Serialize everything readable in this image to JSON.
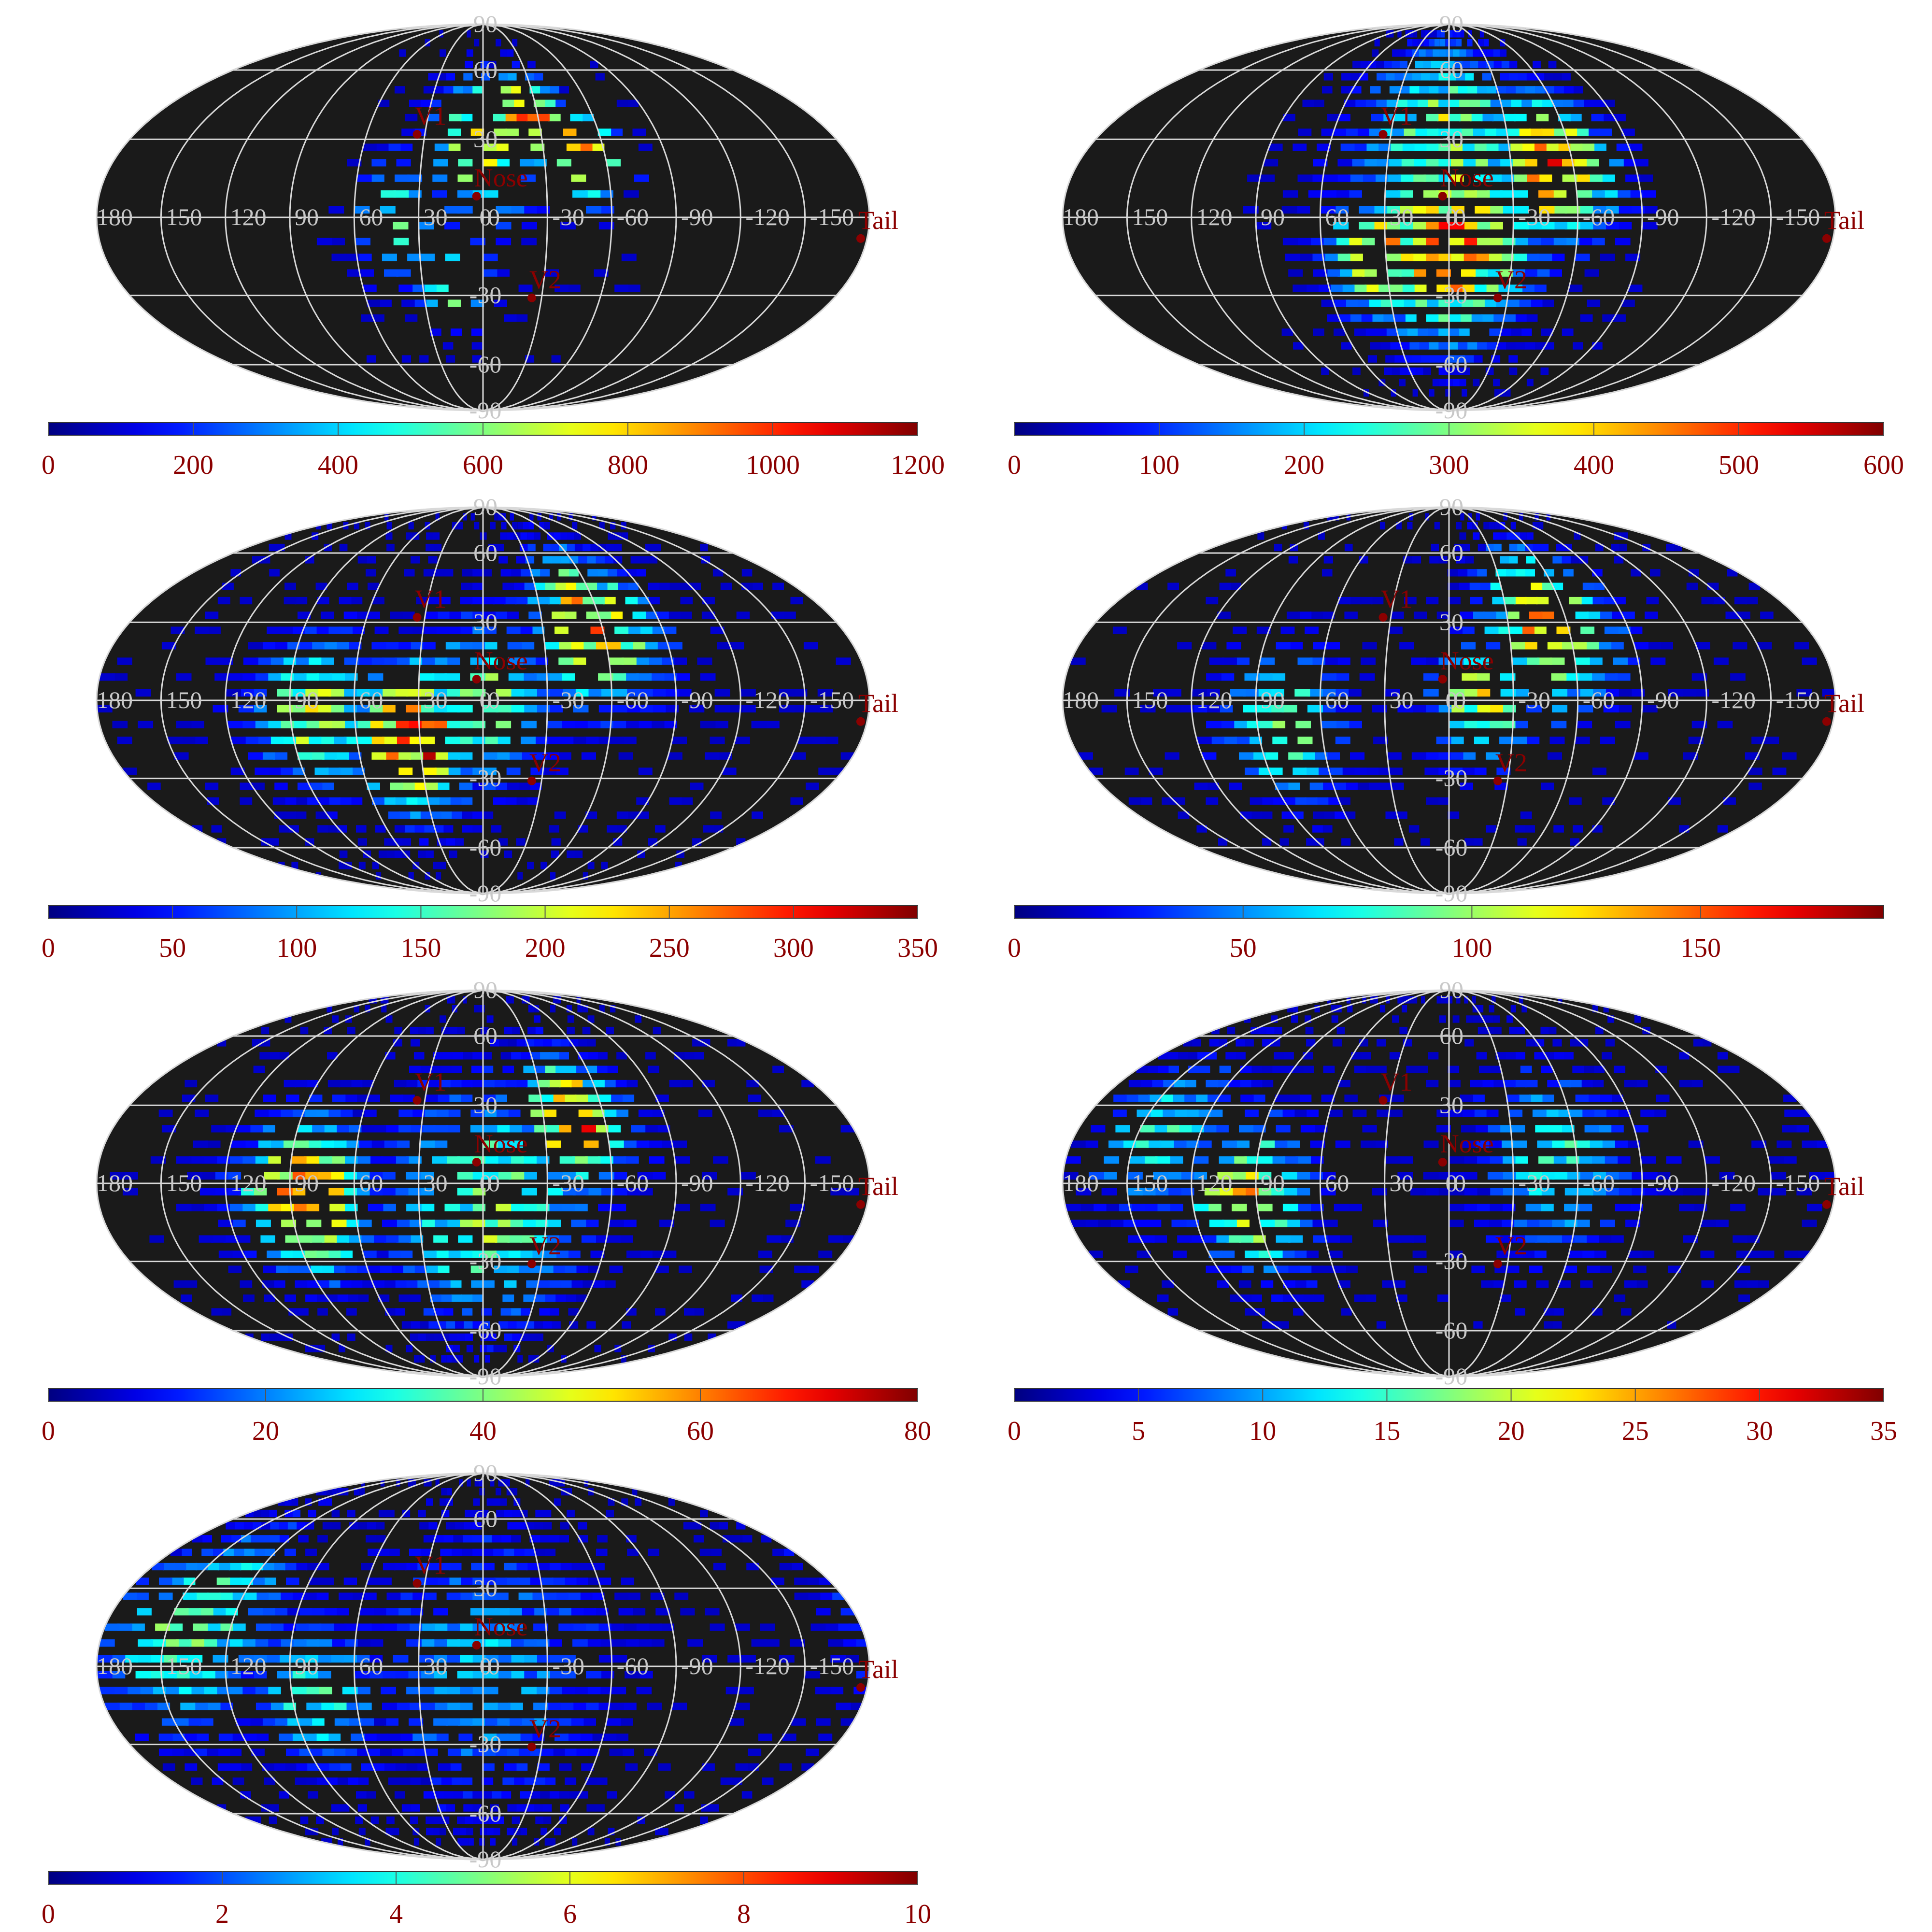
{
  "chart_data": [
    {
      "type": "heatmap",
      "colorbar": {
        "ticks": [
          "0",
          "200",
          "400",
          "600",
          "800",
          "1000",
          "1200"
        ],
        "min": 0,
        "max": 1200
      },
      "hotspots": [
        {
          "lon": 0,
          "lat": 30,
          "value": 700,
          "spread": 18
        },
        {
          "lon": -25,
          "lat": 40,
          "value": 950,
          "spread": 12
        },
        {
          "lon": -50,
          "lat": 25,
          "value": 800,
          "spread": 12
        },
        {
          "lon": 15,
          "lat": -25,
          "value": 600,
          "spread": 12
        },
        {
          "lon": 40,
          "lat": 0,
          "value": 450,
          "spread": 15
        }
      ],
      "cell_density": 0.45,
      "region": {
        "lon_min": -90,
        "lon_max": 75,
        "lat_min": -60,
        "lat_max": 85
      }
    },
    {
      "type": "heatmap",
      "colorbar": {
        "ticks": [
          "0",
          "100",
          "200",
          "300",
          "400",
          "500",
          "600"
        ],
        "min": 0,
        "max": 600
      },
      "hotspots": [
        {
          "lon": 0,
          "lat": -10,
          "value": 420,
          "spread": 25
        },
        {
          "lon": -50,
          "lat": 20,
          "value": 460,
          "spread": 18
        },
        {
          "lon": 35,
          "lat": -15,
          "value": 400,
          "spread": 15
        },
        {
          "lon": 0,
          "lat": 30,
          "value": 280,
          "spread": 30
        }
      ],
      "cell_density": 0.9,
      "region": {
        "lon_min": -95,
        "lon_max": 95,
        "lat_min": -75,
        "lat_max": 85
      }
    },
    {
      "type": "heatmap",
      "colorbar": {
        "ticks": [
          "0",
          "50",
          "100",
          "150",
          "200",
          "250",
          "300",
          "350"
        ],
        "min": 0,
        "max": 350
      },
      "hotspots": [
        {
          "lon": 35,
          "lat": -15,
          "value": 280,
          "spread": 18
        },
        {
          "lon": -55,
          "lat": 30,
          "value": 230,
          "spread": 20
        },
        {
          "lon": 80,
          "lat": -5,
          "value": 180,
          "spread": 18
        },
        {
          "lon": 0,
          "lat": 0,
          "value": 160,
          "spread": 20
        }
      ],
      "cell_density": 0.85,
      "region": {
        "lon_min": -180,
        "lon_max": 180,
        "lat_min": -75,
        "lat_max": 85
      }
    },
    {
      "type": "heatmap",
      "colorbar": {
        "ticks": [
          "0",
          "50",
          "100",
          "150"
        ],
        "min": 0,
        "max": 190
      },
      "hotspots": [
        {
          "lon": -50,
          "lat": 30,
          "value": 130,
          "spread": 20
        },
        {
          "lon": 80,
          "lat": -10,
          "value": 90,
          "spread": 18
        },
        {
          "lon": -15,
          "lat": 0,
          "value": 100,
          "spread": 15
        }
      ],
      "cell_density": 0.7,
      "region": {
        "lon_min": -180,
        "lon_max": 180,
        "lat_min": -60,
        "lat_max": 85
      }
    },
    {
      "type": "heatmap",
      "colorbar": {
        "ticks": [
          "0",
          "20",
          "40",
          "60",
          "80"
        ],
        "min": 0,
        "max": 80
      },
      "hotspots": [
        {
          "lon": 85,
          "lat": -5,
          "value": 62,
          "spread": 18
        },
        {
          "lon": -45,
          "lat": 25,
          "value": 60,
          "spread": 16
        },
        {
          "lon": 0,
          "lat": -10,
          "value": 35,
          "spread": 30
        }
      ],
      "cell_density": 0.85,
      "region": {
        "lon_min": -180,
        "lon_max": 180,
        "lat_min": -75,
        "lat_max": 85
      }
    },
    {
      "type": "heatmap",
      "colorbar": {
        "ticks": [
          "0",
          "5",
          "10",
          "15",
          "20",
          "25",
          "30",
          "35"
        ],
        "min": 0,
        "max": 35
      },
      "hotspots": [
        {
          "lon": 95,
          "lat": -5,
          "value": 20,
          "spread": 18
        },
        {
          "lon": -50,
          "lat": 10,
          "value": 13,
          "spread": 22
        },
        {
          "lon": 140,
          "lat": 20,
          "value": 12,
          "spread": 20
        }
      ],
      "cell_density": 0.8,
      "region": {
        "lon_min": -180,
        "lon_max": 180,
        "lat_min": -60,
        "lat_max": 85
      }
    },
    {
      "type": "heatmap",
      "colorbar": {
        "ticks": [
          "0",
          "2",
          "4",
          "6",
          "8",
          "10"
        ],
        "min": 0,
        "max": 10
      },
      "hotspots": [
        {
          "lon": 140,
          "lat": 15,
          "value": 4.5,
          "spread": 25
        },
        {
          "lon": 80,
          "lat": -10,
          "value": 3.8,
          "spread": 18
        },
        {
          "lon": 0,
          "lat": 0,
          "value": 2.5,
          "spread": 35
        }
      ],
      "cell_density": 0.85,
      "region": {
        "lon_min": -180,
        "lon_max": 180,
        "lat_min": -80,
        "lat_max": 85
      }
    }
  ],
  "grid_labels": {
    "latitudes": [
      "90",
      "60",
      "30",
      "0",
      "-30",
      "-60",
      "-90"
    ],
    "longitudes": [
      "180",
      "150",
      "120",
      "90",
      "60",
      "30",
      "0",
      "-30",
      "-60",
      "-90",
      "-120",
      "-150"
    ]
  },
  "markers": [
    {
      "label": "V1",
      "lon": 34,
      "lat": 32
    },
    {
      "label": "Nose",
      "lon": 3,
      "lat": 8
    },
    {
      "label": "V2",
      "lon": -25,
      "lat": -31
    },
    {
      "label": "Tail",
      "lon": -177,
      "lat": -8
    }
  ],
  "colors": {
    "background": "#1a1a1a",
    "gridline": "#d9d9d9",
    "marker": "#8b0000"
  }
}
